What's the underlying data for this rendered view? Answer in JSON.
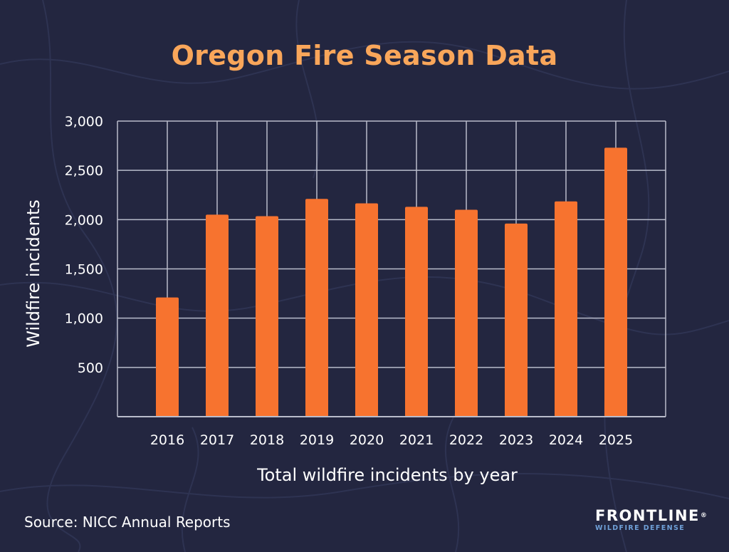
{
  "source": "Source: NICC Annual Reports",
  "logo": {
    "name": "FRONTLINE",
    "registered": "®",
    "tagline": "WILDFIRE DEFENSE"
  },
  "colors": {
    "background": "#232640",
    "bar": "#F7732F",
    "title": "#F9A65A",
    "grid": "#B9BCCB",
    "text": "#FFFFFF",
    "tagline": "#6FA0D8"
  },
  "chart_data": {
    "type": "bar",
    "title": "Oregon Fire Season Data",
    "xlabel": "Total wildfire incidents by year",
    "ylabel": "Wildfire incidents",
    "categories": [
      "2016",
      "2017",
      "2018",
      "2019",
      "2020",
      "2021",
      "2022",
      "2023",
      "2024",
      "2025"
    ],
    "values": [
      1210,
      2050,
      2035,
      2210,
      2165,
      2130,
      2100,
      1960,
      2185,
      2730
    ],
    "ylim": [
      0,
      3000
    ],
    "yticks": [
      500,
      1000,
      1500,
      2000,
      2500,
      3000
    ],
    "ytick_labels": [
      "500",
      "1,000",
      "1,500",
      "2,000",
      "2,500",
      "3,000"
    ],
    "grid": true,
    "legend": "none"
  }
}
